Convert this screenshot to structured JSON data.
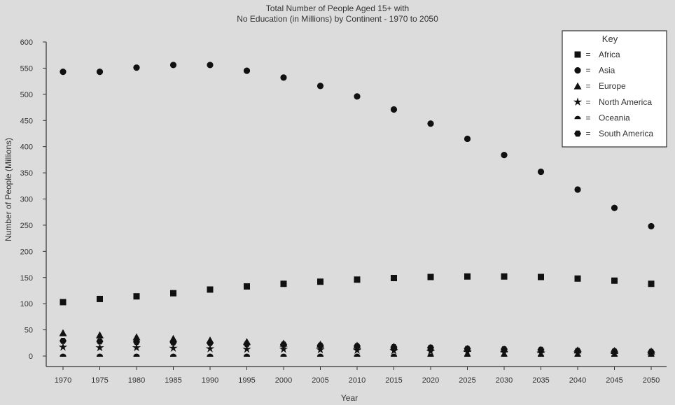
{
  "chart_data": {
    "type": "scatter",
    "title_lines": [
      "Total Number of People Aged 15+ with",
      "No Education (in Millions) by Continent - 1970 to 2050"
    ],
    "xlabel": "Year",
    "ylabel": "Number of People (Millions)",
    "x": [
      1970,
      1975,
      1980,
      1985,
      1990,
      1995,
      2000,
      2005,
      2010,
      2015,
      2020,
      2025,
      2030,
      2035,
      2040,
      2045,
      2050
    ],
    "yticks": [
      0,
      50,
      100,
      150,
      200,
      250,
      300,
      350,
      400,
      450,
      500,
      550,
      600
    ],
    "ylim": [
      0,
      600
    ],
    "grid": false,
    "legend": {
      "title": "Key",
      "position": "top-right",
      "separator": "="
    },
    "series": [
      {
        "name": "Africa",
        "marker": "square",
        "values": [
          103,
          109,
          114,
          120,
          127,
          133,
          138,
          142,
          146,
          149,
          151,
          152,
          152,
          151,
          148,
          144,
          138
        ]
      },
      {
        "name": "Asia",
        "marker": "circle",
        "values": [
          543,
          543,
          551,
          556,
          556,
          545,
          532,
          516,
          496,
          471,
          444,
          415,
          384,
          352,
          318,
          283,
          248
        ]
      },
      {
        "name": "Europe",
        "marker": "triangle",
        "values": [
          44,
          40,
          36,
          33,
          30,
          27,
          24,
          22,
          20,
          18,
          16,
          14,
          13,
          12,
          11,
          10,
          9
        ]
      },
      {
        "name": "North America",
        "marker": "star",
        "values": [
          17,
          16,
          16,
          15,
          14,
          13,
          13,
          12,
          11,
          10,
          9,
          8,
          7,
          6,
          6,
          5,
          5
        ]
      },
      {
        "name": "Oceania",
        "marker": "half-circle",
        "values": [
          1,
          1,
          1,
          1,
          1,
          1,
          1,
          1,
          1,
          1,
          1,
          1,
          1,
          1,
          1,
          1,
          1
        ]
      },
      {
        "name": "South America",
        "marker": "hexagon",
        "values": [
          29,
          28,
          27,
          26,
          25,
          23,
          22,
          20,
          19,
          17,
          16,
          14,
          13,
          12,
          10,
          9,
          8
        ]
      }
    ]
  }
}
